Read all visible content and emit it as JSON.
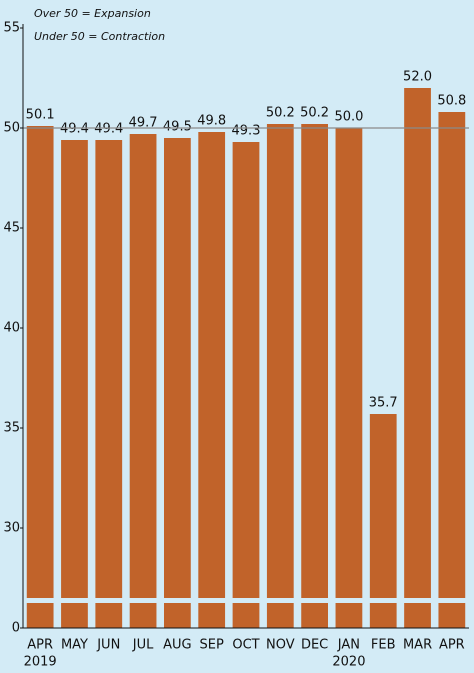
{
  "chart_data": {
    "type": "bar",
    "annotations": [
      "Over 50 = Expansion",
      "Under 50 = Contraction"
    ],
    "categories": [
      [
        "APR",
        "2019"
      ],
      [
        "MAY"
      ],
      [
        "JUN"
      ],
      [
        "JUL"
      ],
      [
        "AUG"
      ],
      [
        "SEP"
      ],
      [
        "OCT"
      ],
      [
        "NOV"
      ],
      [
        "DEC"
      ],
      [
        "JAN",
        "2020"
      ],
      [
        "FEB"
      ],
      [
        "MAR"
      ],
      [
        "APR"
      ]
    ],
    "values": [
      50.1,
      49.4,
      49.4,
      49.7,
      49.5,
      49.8,
      49.3,
      50.2,
      50.2,
      50.0,
      35.7,
      52.0,
      50.8
    ],
    "value_labels": [
      "50.1",
      "49.4",
      "49.4",
      "49.7",
      "49.5",
      "49.8",
      "49.3",
      "50.2",
      "50.2",
      "50.0",
      "35.7",
      "52.0",
      "50.8"
    ],
    "color": "#c1632a",
    "ylim": [
      0,
      55
    ],
    "yticks": [
      0,
      30,
      35,
      40,
      45,
      50,
      55
    ],
    "axis_break": true,
    "reference_line": 50
  }
}
